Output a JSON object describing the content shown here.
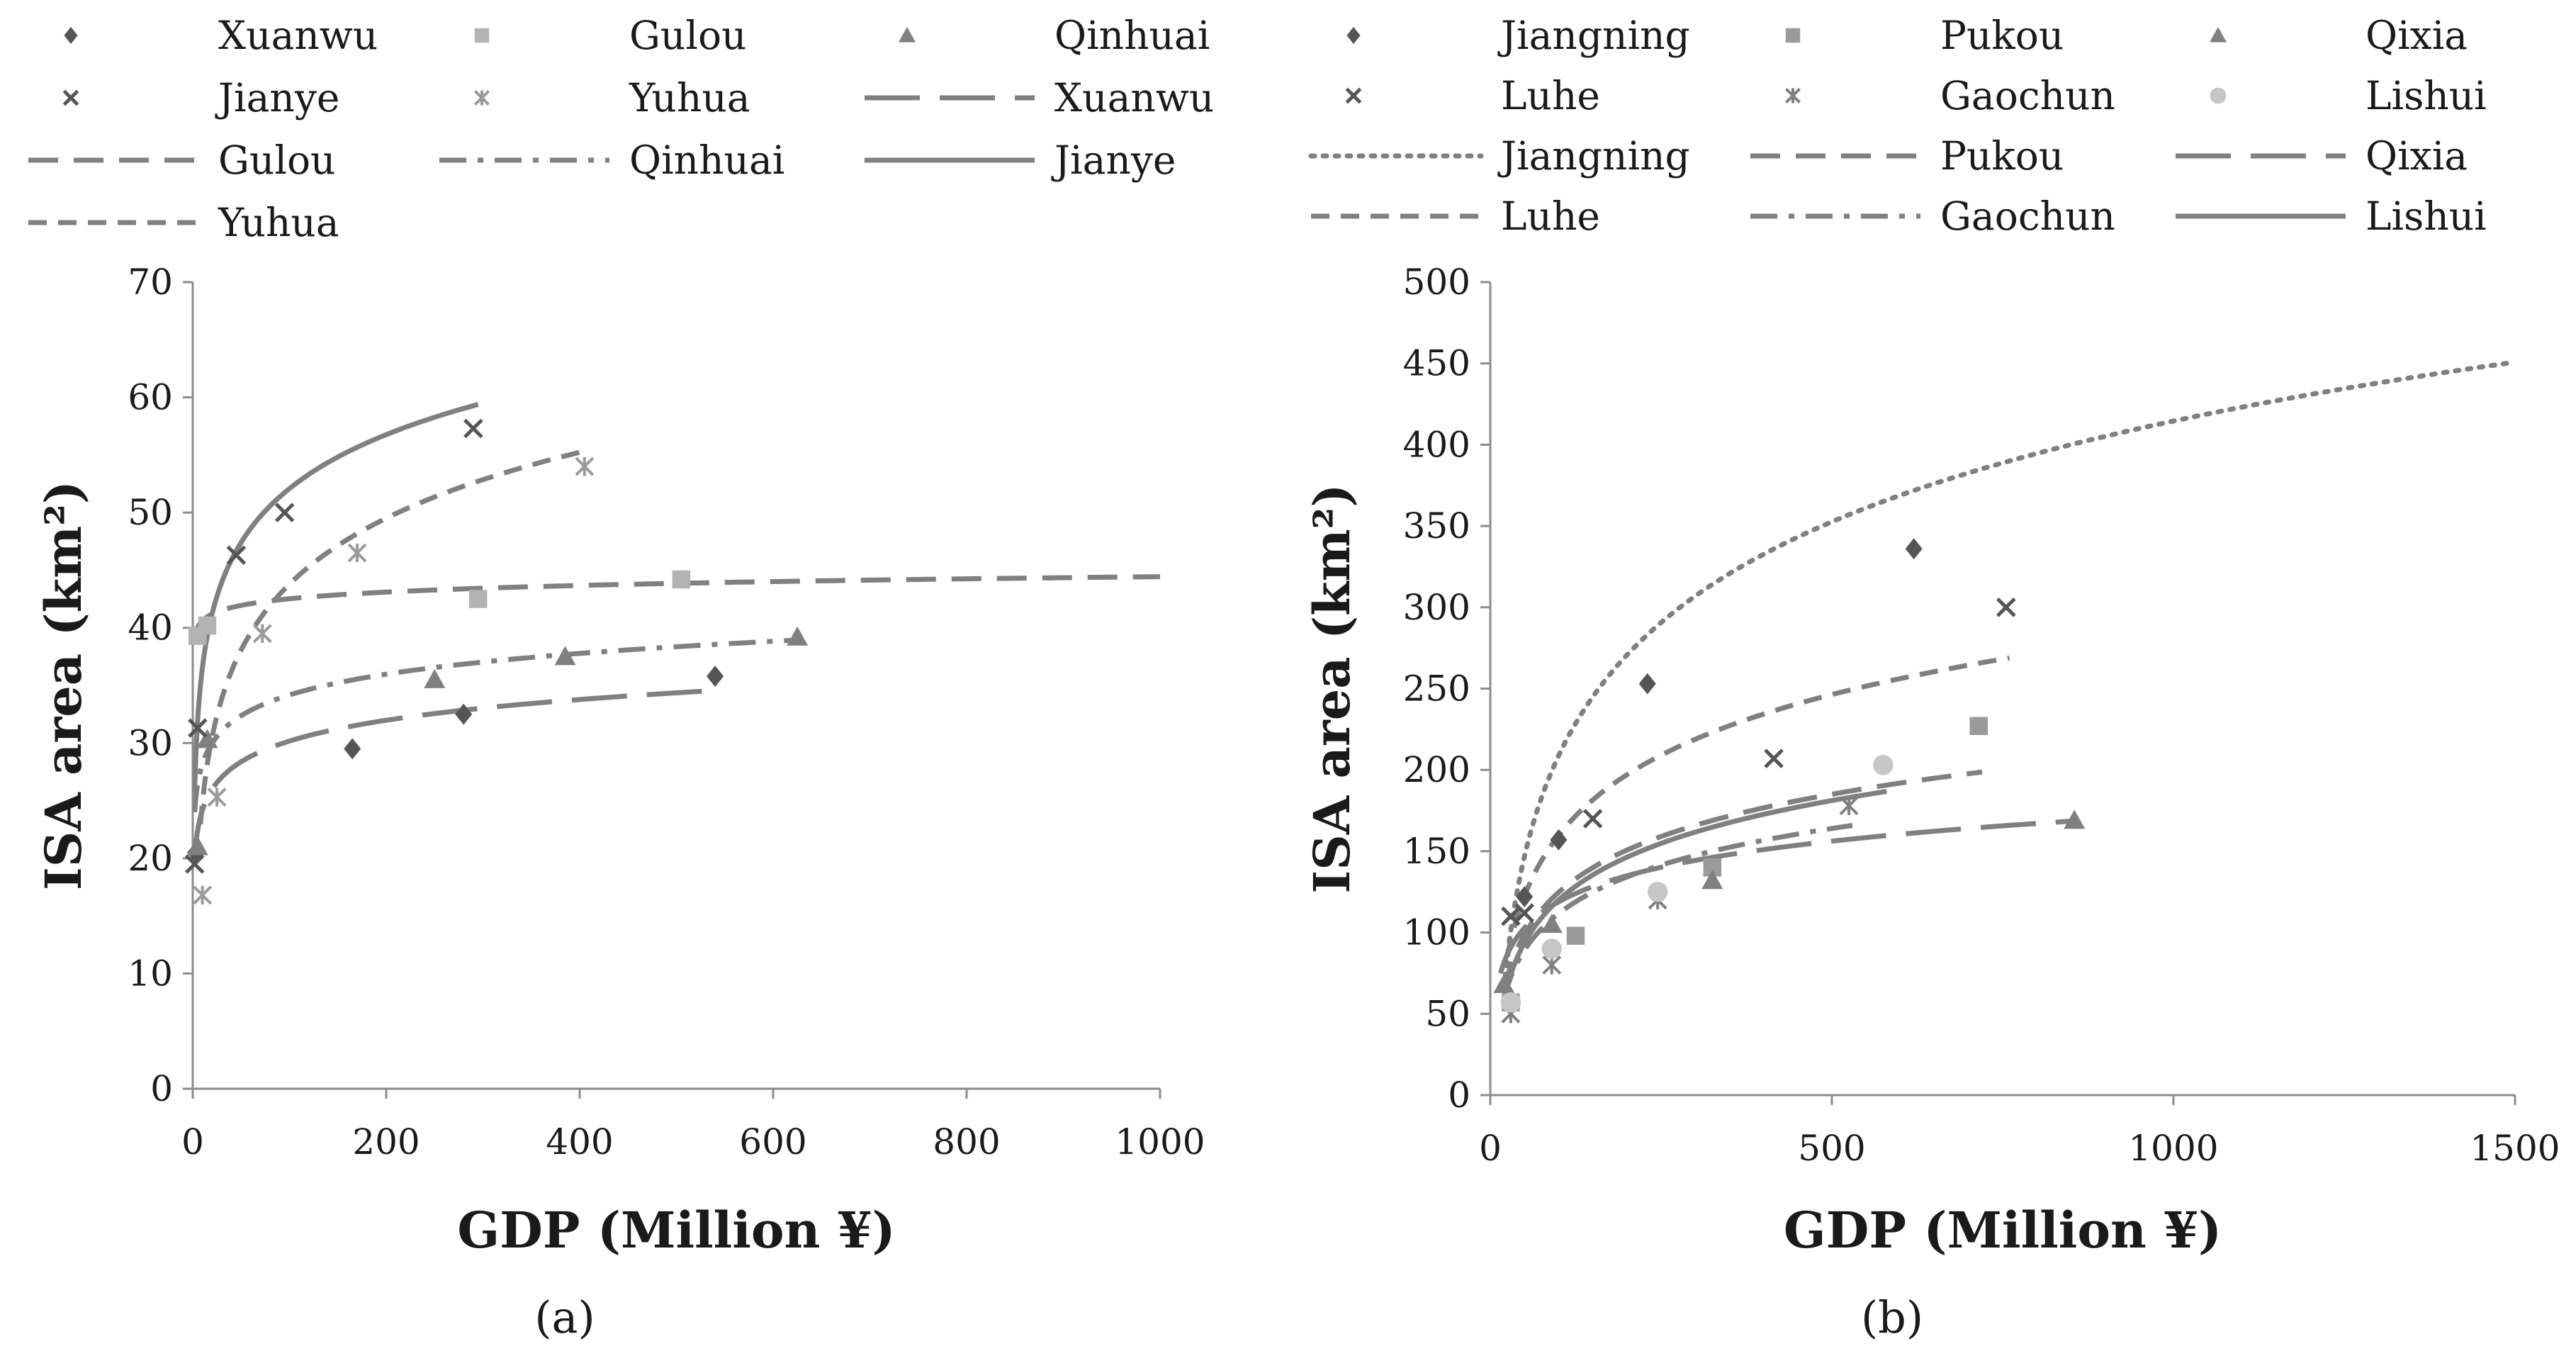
{
  "chart_data": [
    {
      "type": "scatter",
      "panel_label": "(a)",
      "xlabel": "GDP (Million ¥)",
      "ylabel": "ISA area (km²)",
      "xlim": [
        0,
        1000
      ],
      "ylim": [
        0,
        70
      ],
      "xticks": [
        0,
        200,
        400,
        600,
        800,
        1000
      ],
      "yticks": [
        0,
        10,
        20,
        30,
        40,
        50,
        60,
        70
      ],
      "grid": false,
      "legend_position": "top",
      "legend": [
        {
          "label": "Xuanwu",
          "kind": "marker",
          "series": 0
        },
        {
          "label": "Gulou",
          "kind": "marker",
          "series": 1
        },
        {
          "label": "Qinhuai",
          "kind": "marker",
          "series": 2
        },
        {
          "label": "Jianye",
          "kind": "marker",
          "series": 3
        },
        {
          "label": "Yuhua",
          "kind": "marker",
          "series": 4
        },
        {
          "label": "Xuanwu",
          "kind": "line",
          "series": 0
        },
        {
          "label": "Gulou",
          "kind": "line",
          "series": 1
        },
        {
          "label": "Qinhuai",
          "kind": "line",
          "series": 2
        },
        {
          "label": "Jianye",
          "kind": "line",
          "series": 3
        },
        {
          "label": "Yuhua",
          "kind": "line",
          "series": 4
        }
      ],
      "series": [
        {
          "name": "Xuanwu",
          "marker": "diamond",
          "color": "#555555",
          "line": "longdash",
          "points": [
            [
              3,
              20.5
            ],
            [
              165,
              29.5
            ],
            [
              280,
              32.5
            ],
            [
              540,
              35.8
            ]
          ],
          "trend": {
            "type": "log",
            "a": 18.2,
            "b": 2.6,
            "x_range": [
              2,
              545
            ]
          }
        },
        {
          "name": "Gulou",
          "marker": "square",
          "color": "#b3b3b3",
          "line": "dash",
          "points": [
            [
              5,
              39.3
            ],
            [
              15,
              40.2
            ],
            [
              295,
              42.5
            ],
            [
              505,
              44.2
            ]
          ],
          "trend": {
            "type": "log",
            "a": 38.7,
            "b": 0.83,
            "x_range": [
              2,
              1000
            ]
          }
        },
        {
          "name": "Qinhuai",
          "marker": "triangle",
          "color": "#808080",
          "line": "dashdot",
          "points": [
            [
              5,
              21
            ],
            [
              15,
              30.3
            ],
            [
              250,
              35.5
            ],
            [
              385,
              37.5
            ],
            [
              625,
              39.2
            ]
          ],
          "trend": {
            "type": "log",
            "a": 22.2,
            "b": 2.6,
            "x_range": [
              2,
              630
            ]
          }
        },
        {
          "name": "Jianye",
          "marker": "x",
          "color": "#555555",
          "line": "solid",
          "points": [
            [
              2,
              19.5
            ],
            [
              5,
              31.3
            ],
            [
              45,
              46.3
            ],
            [
              95,
              50
            ],
            [
              290,
              57.3
            ]
          ],
          "trend": {
            "type": "log",
            "a": 21,
            "b": 6.75,
            "x_range": [
              2,
              295
            ]
          }
        },
        {
          "name": "Yuhua",
          "marker": "asterisk",
          "color": "#9a9a9a",
          "line": "shortdash",
          "points": [
            [
              10,
              16.8
            ],
            [
              25,
              25.3
            ],
            [
              72,
              39.5
            ],
            [
              170,
              46.5
            ],
            [
              405,
              54
            ]
          ],
          "trend": {
            "type": "log",
            "a": 5.8,
            "b": 8.25,
            "x_range": [
              8,
              410
            ]
          }
        }
      ]
    },
    {
      "type": "scatter",
      "panel_label": "(b)",
      "xlabel": "GDP (Million ¥)",
      "ylabel": "ISA area (km²)",
      "xlim": [
        0,
        1500
      ],
      "ylim": [
        0,
        500
      ],
      "xticks": [
        0,
        500,
        1000,
        1500
      ],
      "yticks": [
        0,
        50,
        100,
        150,
        200,
        250,
        300,
        350,
        400,
        450,
        500
      ],
      "grid": false,
      "legend_position": "top",
      "legend": [
        {
          "label": "Jiangning",
          "kind": "marker",
          "series": 0
        },
        {
          "label": "Pukou",
          "kind": "marker",
          "series": 1
        },
        {
          "label": "Qixia",
          "kind": "marker",
          "series": 2
        },
        {
          "label": "Luhe",
          "kind": "marker",
          "series": 3
        },
        {
          "label": "Gaochun",
          "kind": "marker",
          "series": 4
        },
        {
          "label": "Lishui",
          "kind": "marker",
          "series": 5
        },
        {
          "label": "Jiangning",
          "kind": "line",
          "series": 0
        },
        {
          "label": "Pukou",
          "kind": "line",
          "series": 1
        },
        {
          "label": "Qixia",
          "kind": "line",
          "series": 2
        },
        {
          "label": "Luhe",
          "kind": "line",
          "series": 3
        },
        {
          "label": "Gaochun",
          "kind": "line",
          "series": 4
        },
        {
          "label": "Lishui",
          "kind": "line",
          "series": 5
        }
      ],
      "series": [
        {
          "name": "Jiangning",
          "marker": "diamond",
          "color": "#555555",
          "line": "dotted",
          "points": [
            [
              50,
              122
            ],
            [
              100,
              157
            ],
            [
              230,
              253
            ],
            [
              620,
              336
            ]
          ],
          "trend": {
            "type": "log",
            "a": -203,
            "b": 89.4,
            "x_range": [
              20,
              1500
            ]
          }
        },
        {
          "name": "Pukou",
          "marker": "square",
          "color": "#9a9a9a",
          "line": "dash",
          "points": [
            [
              30,
              57
            ],
            [
              125,
              98
            ],
            [
              325,
              140
            ],
            [
              715,
              227
            ]
          ],
          "trend": {
            "type": "log",
            "a": -48,
            "b": 37.5,
            "x_range": [
              20,
              720
            ]
          }
        },
        {
          "name": "Qixia",
          "marker": "triangle",
          "color": "#808080",
          "line": "longdash",
          "points": [
            [
              20,
              68
            ],
            [
              90,
              105
            ],
            [
              325,
              132
            ],
            [
              855,
              169
            ]
          ],
          "trend": {
            "type": "log",
            "a": 12,
            "b": 23.2,
            "x_range": [
              15,
              860
            ]
          }
        },
        {
          "name": "Luhe",
          "marker": "x",
          "color": "#555555",
          "line": "shortdash",
          "points": [
            [
              30,
              110
            ],
            [
              50,
              112
            ],
            [
              150,
              170
            ],
            [
              415,
              207
            ],
            [
              755,
              300
            ]
          ],
          "trend": {
            "type": "log",
            "a": -88,
            "b": 53.8,
            "x_range": [
              25,
              760
            ]
          }
        },
        {
          "name": "Gaochun",
          "marker": "asterisk",
          "color": "#808080",
          "line": "dashdot",
          "points": [
            [
              30,
              50
            ],
            [
              90,
              80
            ],
            [
              245,
              120
            ],
            [
              525,
              178
            ]
          ],
          "trend": {
            "type": "log",
            "a": -38,
            "b": 32.5,
            "x_range": [
              20,
              530
            ]
          }
        },
        {
          "name": "Lishui",
          "marker": "circle",
          "color": "#c6c6c6",
          "line": "solid",
          "points": [
            [
              30,
              57
            ],
            [
              90,
              90
            ],
            [
              245,
              125
            ],
            [
              575,
              203
            ]
          ],
          "trend": {
            "type": "log",
            "a": -55,
            "b": 38,
            "x_range": [
              20,
              580
            ]
          }
        }
      ]
    }
  ]
}
